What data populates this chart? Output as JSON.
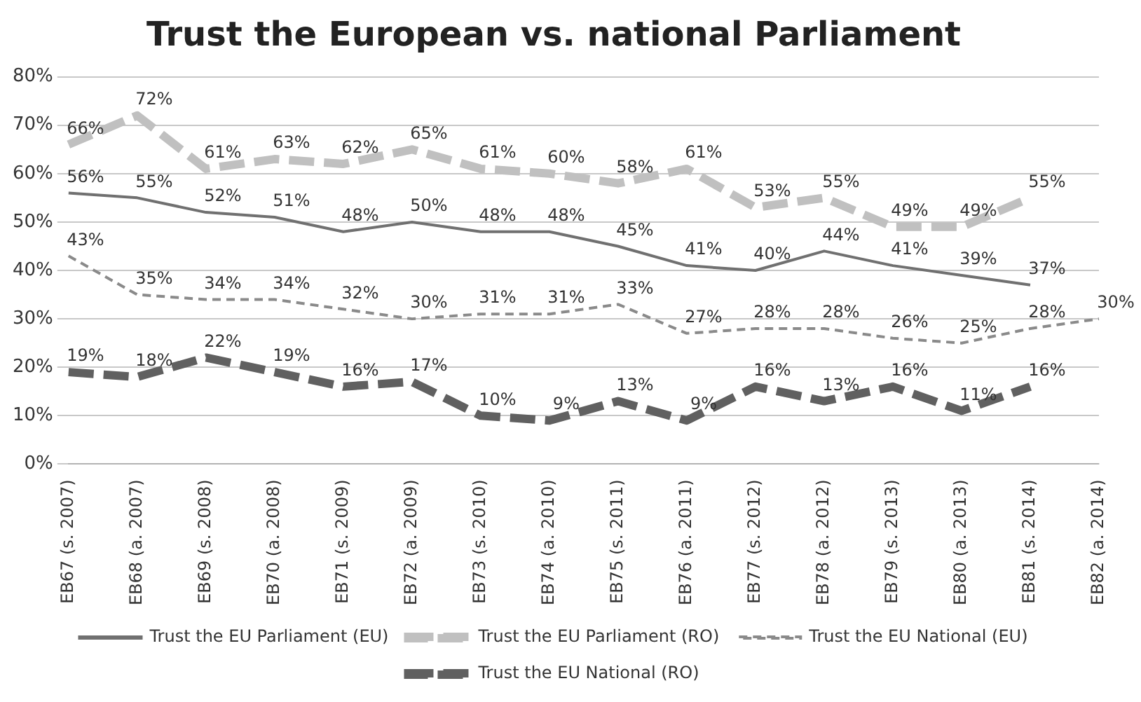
{
  "chart_data": {
    "type": "line",
    "title": "Trust the European vs. national Parliament",
    "categories": [
      "EB67 (s. 2007)",
      "EB68 (a. 2007)",
      "EB69 (s. 2008)",
      "EB70 (a. 2008)",
      "EB71 (s. 2009)",
      "EB72 (a. 2009)",
      "EB73 (s. 2010)",
      "EB74 (a. 2010)",
      "EB75 (s. 2011)",
      "EB76 (a. 2011)",
      "EB77 (s. 2012)",
      "EB78 (a. 2012)",
      "EB79 (s. 2013)",
      "EB80 (a. 2013)",
      "EB81 (s. 2014)",
      "EB82 (a. 2014)"
    ],
    "series": [
      {
        "name": "Trust the EU Parliament (EU)",
        "color": "#707070",
        "line_style": "solid",
        "values": [
          56,
          55,
          52,
          51,
          48,
          50,
          48,
          48,
          45,
          41,
          40,
          44,
          41,
          39,
          37,
          null
        ],
        "value_labels": [
          "56%",
          "55%",
          "52%",
          "51%",
          "48%",
          "50%",
          "48%",
          "48%",
          "45%",
          "41%",
          "40%",
          "44%",
          "41%",
          "39%",
          "37%",
          null
        ]
      },
      {
        "name": "Trust the EU Parliament (RO)",
        "color": "#c0c0c0",
        "line_style": "dashed",
        "values": [
          66,
          72,
          61,
          63,
          62,
          65,
          61,
          60,
          58,
          61,
          53,
          55,
          49,
          49,
          55,
          null
        ],
        "value_labels": [
          "66%",
          "72%",
          "61%",
          "63%",
          "62%",
          "65%",
          "61%",
          "60%",
          "58%",
          "61%",
          "53%",
          "55%",
          "49%",
          "49%",
          "55%",
          null
        ]
      },
      {
        "name": "Trust the EU National (EU)",
        "color": "#8a8a8a",
        "line_style": "dashed",
        "values": [
          43,
          35,
          34,
          34,
          32,
          30,
          31,
          31,
          33,
          27,
          28,
          28,
          26,
          25,
          28,
          30
        ],
        "value_labels": [
          "43%",
          "35%",
          "34%",
          "34%",
          "32%",
          "30%",
          "31%",
          "31%",
          "33%",
          "27%",
          "28%",
          "28%",
          "26%",
          "25%",
          "28%",
          "30%"
        ]
      },
      {
        "name": "Trust the EU National (RO)",
        "color": "#606060",
        "line_style": "dashed",
        "values": [
          19,
          18,
          22,
          19,
          16,
          17,
          10,
          9,
          13,
          9,
          16,
          13,
          16,
          11,
          16,
          null
        ],
        "value_labels": [
          "19%",
          "18%",
          "22%",
          "19%",
          "16%",
          "17%",
          "10%",
          "9%",
          "13%",
          "9%",
          "16%",
          "13%",
          "16%",
          "11%",
          "16%",
          null
        ]
      }
    ],
    "ylim": [
      0,
      80
    ],
    "yticks": [
      {
        "value": 0,
        "label": "0%"
      },
      {
        "value": 10,
        "label": "10%"
      },
      {
        "value": 20,
        "label": "20%"
      },
      {
        "value": 30,
        "label": "30%"
      },
      {
        "value": 40,
        "label": "40%"
      },
      {
        "value": 50,
        "label": "50%"
      },
      {
        "value": 60,
        "label": "60%"
      },
      {
        "value": 70,
        "label": "70%"
      },
      {
        "value": 80,
        "label": "80%"
      }
    ],
    "grid": "y",
    "legend": "bottom"
  }
}
